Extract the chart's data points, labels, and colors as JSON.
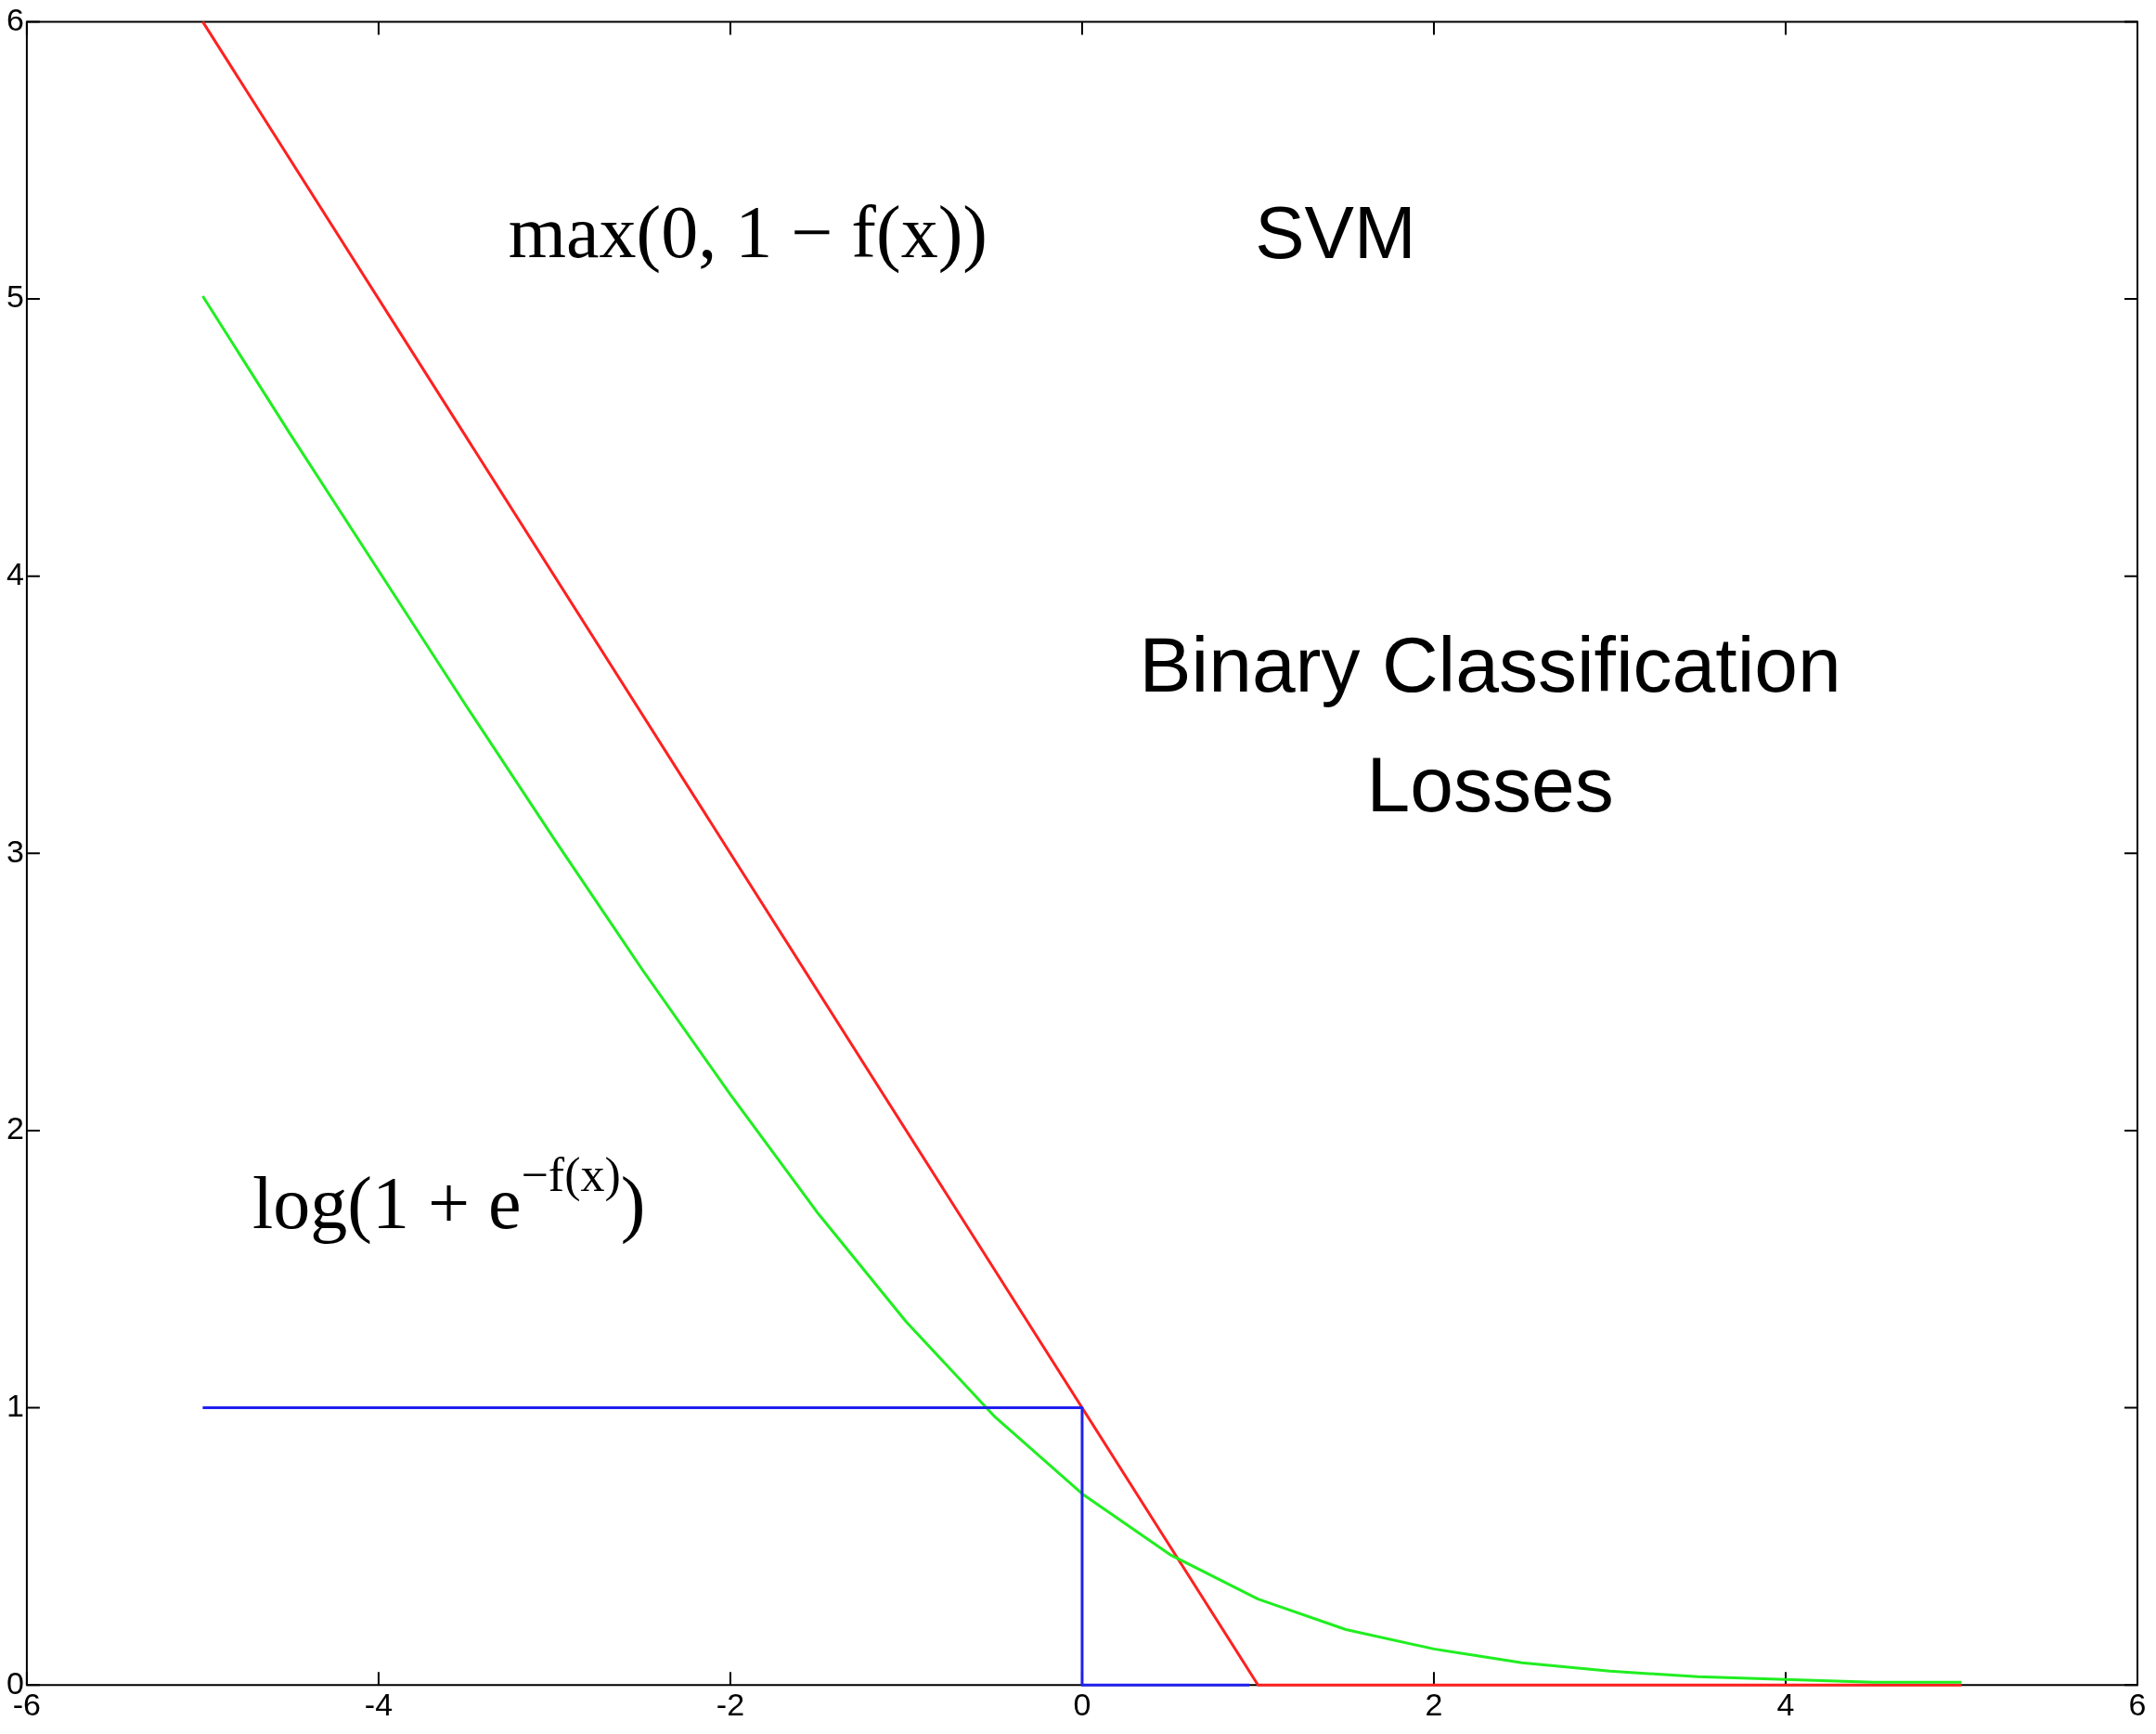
{
  "chart_data": {
    "type": "line",
    "title": "Binary Classification Losses",
    "xlim": [
      -6,
      6
    ],
    "xticks": [
      -6,
      -4,
      -2,
      0,
      2,
      4,
      6
    ],
    "ylim": [
      0,
      6
    ],
    "yticks": [
      0,
      1,
      2,
      3,
      4,
      5,
      6
    ],
    "grid": false,
    "legend": false,
    "marker": "none",
    "line_style": "solid",
    "series": [
      {
        "color": "#2020ee",
        "x": [
          -5,
          0,
          0,
          0.95
        ],
        "values": [
          1,
          1,
          0,
          0
        ]
      },
      {
        "color": "#20ee20",
        "x": [
          -5,
          -4.5,
          -4,
          -3.5,
          -3,
          -2.5,
          -2,
          -1.5,
          -1,
          -0.5,
          0,
          0.5,
          1,
          1.5,
          2,
          2.5,
          3,
          3.5,
          4,
          4.5,
          5
        ],
        "values": [
          5.01,
          4.51,
          4.02,
          3.53,
          3.05,
          2.58,
          2.13,
          1.7,
          1.31,
          0.97,
          0.69,
          0.47,
          0.31,
          0.2,
          0.13,
          0.08,
          0.05,
          0.03,
          0.02,
          0.01,
          0.01
        ]
      },
      {
        "color": "#ff2020",
        "x": [
          -5,
          1,
          5
        ],
        "values": [
          6,
          0,
          0
        ]
      }
    ],
    "annotations": [
      "max(0, 1 − f(x))",
      "SVM",
      "log(1 + e$^{−f(x)}$)"
    ]
  }
}
